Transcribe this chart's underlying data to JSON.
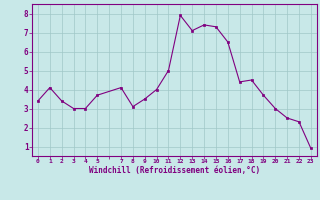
{
  "x": [
    0,
    1,
    2,
    3,
    4,
    5,
    7,
    8,
    9,
    10,
    11,
    12,
    13,
    14,
    15,
    16,
    17,
    18,
    19,
    20,
    21,
    22,
    23
  ],
  "y": [
    3.4,
    4.1,
    3.4,
    3.0,
    3.0,
    3.7,
    4.1,
    3.1,
    3.5,
    4.0,
    5.0,
    7.9,
    7.1,
    7.4,
    7.3,
    6.5,
    4.4,
    4.5,
    3.7,
    3.0,
    2.5,
    2.3,
    0.9
  ],
  "line_color": "#800080",
  "marker_color": "#800080",
  "bg_color": "#c8e8e8",
  "grid_color": "#a0c8c8",
  "xlabel": "Windchill (Refroidissement éolien,°C)",
  "xlabel_color": "#800080",
  "xtick_labels": [
    "0",
    "1",
    "2",
    "3",
    "4",
    "5",
    "",
    "7",
    "8",
    "9",
    "10",
    "11",
    "12",
    "13",
    "14",
    "15",
    "16",
    "17",
    "18",
    "19",
    "20",
    "21",
    "22",
    "23"
  ],
  "xtick_positions": [
    0,
    1,
    2,
    3,
    4,
    5,
    6,
    7,
    8,
    9,
    10,
    11,
    12,
    13,
    14,
    15,
    16,
    17,
    18,
    19,
    20,
    21,
    22,
    23
  ],
  "yticks": [
    1,
    2,
    3,
    4,
    5,
    6,
    7,
    8
  ],
  "ylim": [
    0.5,
    8.5
  ],
  "xlim": [
    -0.5,
    23.5
  ],
  "tick_color": "#800080",
  "spine_color": "#800080"
}
